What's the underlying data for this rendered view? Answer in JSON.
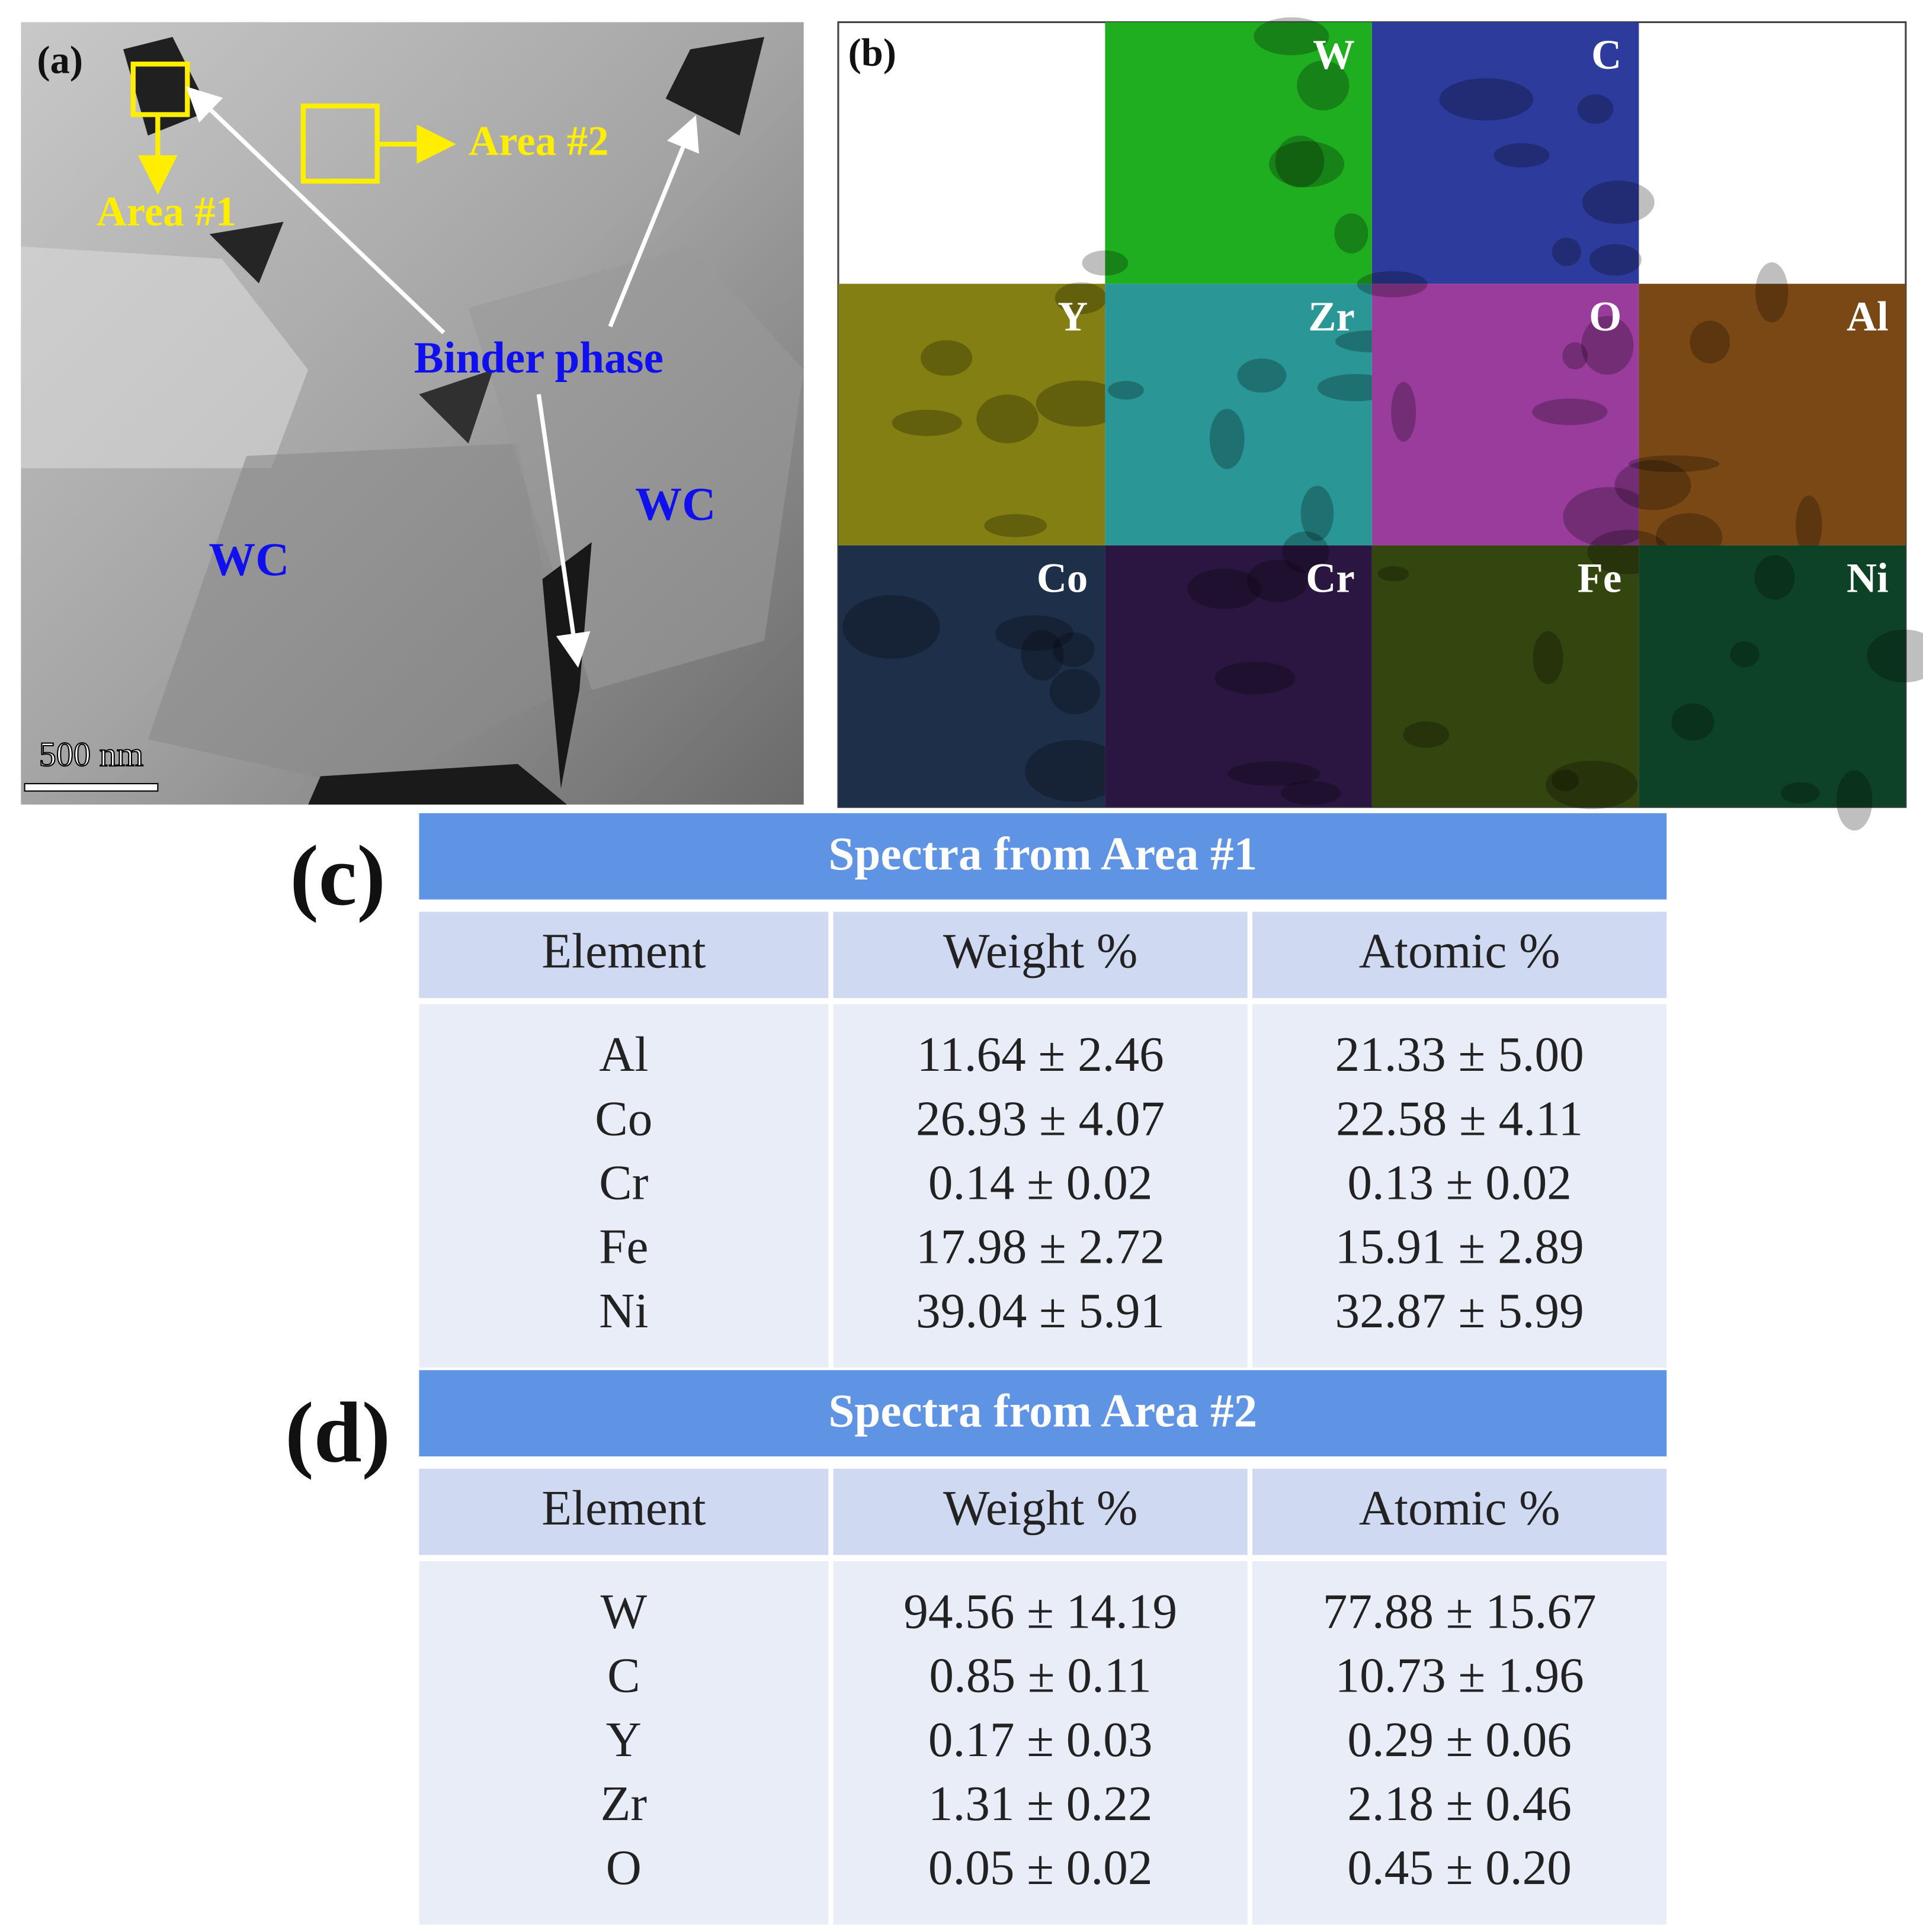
{
  "panel_a": {
    "label": "(a)",
    "area_1": "Area #1",
    "area_2": "Area #2",
    "binder": "Binder phase",
    "phases": [
      "WC",
      "WC"
    ],
    "scale_bar": "500 nm"
  },
  "panel_b": {
    "label": "(b)",
    "maps": [
      {
        "element": "W",
        "color": "#1fae1f"
      },
      {
        "element": "C",
        "color": "#2c3b9c"
      },
      {
        "element": "Y",
        "color": "#837f12"
      },
      {
        "element": "Zr",
        "color": "#2a9696"
      },
      {
        "element": "O",
        "color": "#9a3c9c"
      },
      {
        "element": "Al",
        "color": "#7a4814"
      },
      {
        "element": "Co",
        "color": "#1e2f4a"
      },
      {
        "element": "Cr",
        "color": "#2a1640"
      },
      {
        "element": "Fe",
        "color": "#34460f"
      },
      {
        "element": "Ni",
        "color": "#0d4226"
      }
    ]
  },
  "tables": [
    {
      "label": "(c)",
      "title": "Spectra from Area #1",
      "headers": [
        "Element",
        "Weight %",
        "Atomic %"
      ],
      "rows": [
        [
          "Al",
          "11.64 ± 2.46",
          "21.33 ± 5.00"
        ],
        [
          "Co",
          "26.93 ± 4.07",
          "22.58 ± 4.11"
        ],
        [
          "Cr",
          "0.14 ± 0.02",
          "0.13 ± 0.02"
        ],
        [
          "Fe",
          "17.98 ± 2.72",
          "15.91 ± 2.89"
        ],
        [
          "Ni",
          "39.04 ± 5.91",
          "32.87 ± 5.99"
        ]
      ]
    },
    {
      "label": "(d)",
      "title": "Spectra from Area #2",
      "headers": [
        "Element",
        "Weight %",
        "Atomic %"
      ],
      "rows": [
        [
          "W",
          "94.56 ± 14.19",
          "77.88 ± 15.67"
        ],
        [
          "C",
          "0.85 ± 0.11",
          "10.73 ± 1.96"
        ],
        [
          "Y",
          "0.17 ± 0.03",
          "0.29 ± 0.06"
        ],
        [
          "Zr",
          "1.31 ± 0.22",
          "2.18 ± 0.46"
        ],
        [
          "O",
          "0.05 ± 0.02",
          "0.45 ± 0.20"
        ]
      ]
    }
  ]
}
